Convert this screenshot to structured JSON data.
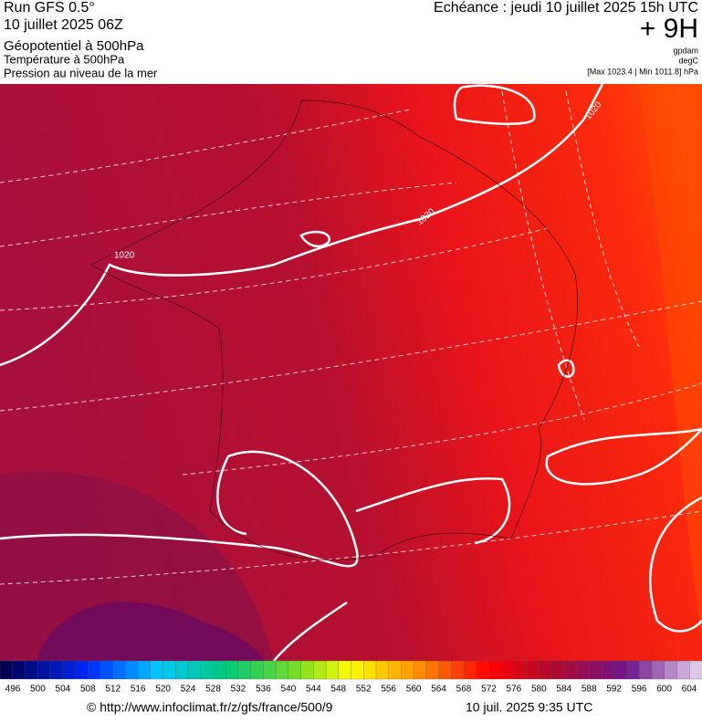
{
  "header": {
    "left": [
      "Run GFS 0.5°",
      "10 juillet 2025 06Z",
      "Géopotentiel à 500hPa",
      "Température à 500hPa",
      "Pression au niveau de la mer"
    ],
    "right": {
      "title": "Echéance : jeudi 10 juillet 2025 15h UTC",
      "lead": "+ 9H",
      "units": [
        "gpdam",
        "degC",
        "[Max 1023.4 | Min 1011.8] hPa"
      ]
    }
  },
  "map": {
    "contour_labels": [
      "1020",
      "1020",
      "1020"
    ]
  },
  "colorbar": {
    "labels": [
      496,
      500,
      504,
      508,
      512,
      516,
      520,
      524,
      528,
      532,
      536,
      540,
      544,
      548,
      552,
      556,
      560,
      564,
      568,
      572,
      576,
      580,
      584,
      588,
      592,
      596,
      600,
      604
    ]
  },
  "footer": {
    "source": "© http://www.infoclimat.fr/z/gfs/france/500/9",
    "date": "10 juil. 2025  9:35 UTC"
  }
}
